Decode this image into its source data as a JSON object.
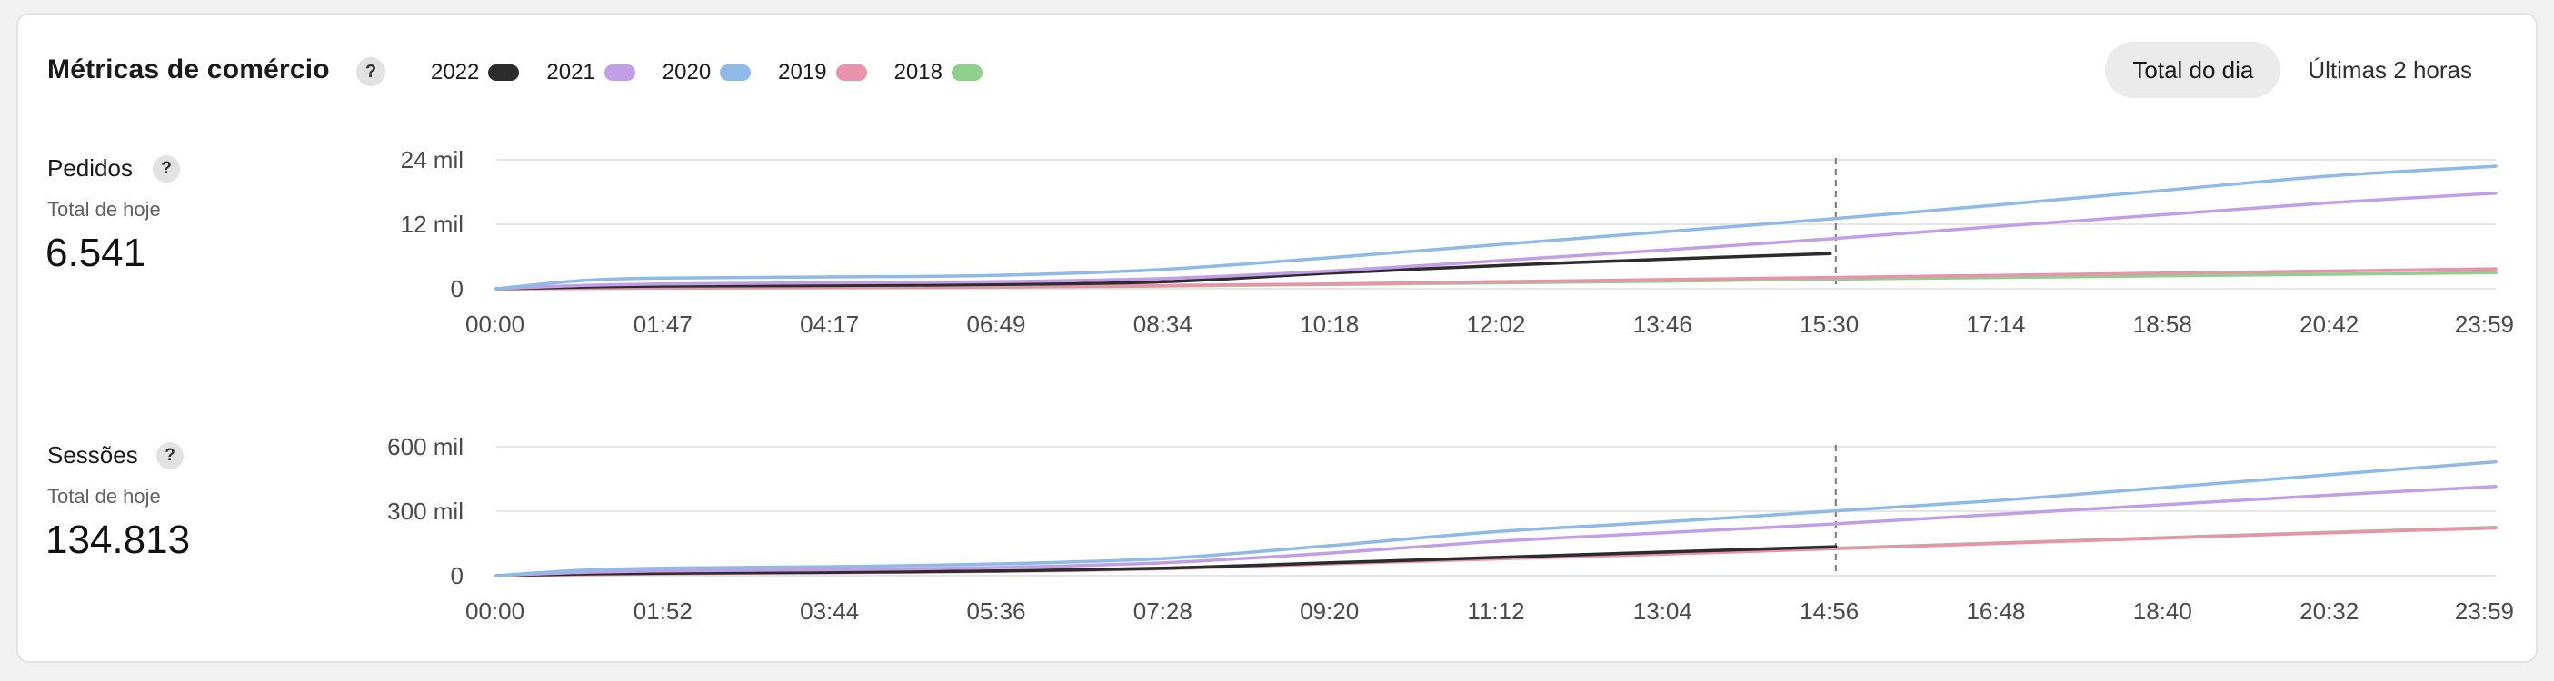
{
  "header": {
    "title": "Métricas de comércio",
    "help": "?",
    "toggle": {
      "options": [
        "Total do dia",
        "Últimas 2 horas"
      ],
      "active": "Total do dia"
    }
  },
  "legend": [
    {
      "label": "2022",
      "color": "#2c2c2c"
    },
    {
      "label": "2021",
      "color": "#c19fe5"
    },
    {
      "label": "2020",
      "color": "#8fb9e6"
    },
    {
      "label": "2019",
      "color": "#e893aa"
    },
    {
      "label": "2018",
      "color": "#8fd18c"
    }
  ],
  "panels": {
    "orders": {
      "title": "Pedidos",
      "help": "?",
      "subtitle": "Total de hoje",
      "value": "6.541"
    },
    "sessions": {
      "title": "Sessões",
      "help": "?",
      "subtitle": "Total de hoje",
      "value": "134.813"
    }
  },
  "chart_data": [
    {
      "type": "line",
      "title": "Pedidos",
      "x_ticks": [
        "00:00",
        "01:47",
        "04:17",
        "06:49",
        "08:34",
        "10:18",
        "12:02",
        "13:46",
        "15:30",
        "17:14",
        "18:58",
        "20:42",
        "23:59"
      ],
      "y_ticks": [
        {
          "value": 0,
          "label": "0"
        },
        {
          "value": 12000,
          "label": "12 mil"
        },
        {
          "value": 24000,
          "label": "24 mil"
        }
      ],
      "ylim": [
        0,
        24000
      ],
      "xlim": [
        "00:00",
        "23:59"
      ],
      "current_time": "16:04",
      "grid": true,
      "legend_position": "top",
      "series": [
        {
          "name": "2020",
          "color": "#8fb9e6",
          "x": [
            "00:00",
            "01:00",
            "02:00",
            "04:00",
            "06:00",
            "08:00",
            "10:00",
            "12:00",
            "14:00",
            "16:00",
            "18:00",
            "20:00",
            "22:00",
            "23:59"
          ],
          "values": [
            0,
            1500,
            2000,
            2200,
            2500,
            3600,
            5800,
            8200,
            10600,
            13000,
            15600,
            18300,
            21000,
            22800
          ]
        },
        {
          "name": "2021",
          "color": "#c19fe5",
          "x": [
            "00:00",
            "01:00",
            "02:00",
            "04:00",
            "06:00",
            "08:00",
            "10:00",
            "12:00",
            "14:00",
            "16:00",
            "18:00",
            "20:00",
            "22:00",
            "23:59"
          ],
          "values": [
            0,
            600,
            900,
            1100,
            1300,
            1900,
            3300,
            5200,
            7200,
            9300,
            11600,
            13800,
            16000,
            17800
          ]
        },
        {
          "name": "2022",
          "color": "#2c2c2c",
          "x": [
            "00:00",
            "01:00",
            "02:00",
            "04:00",
            "06:00",
            "08:00",
            "10:00",
            "12:00",
            "14:00",
            "16:00"
          ],
          "values": [
            0,
            300,
            500,
            600,
            800,
            1300,
            2900,
            4300,
            5500,
            6541
          ]
        },
        {
          "name": "2019",
          "color": "#e893aa",
          "x": [
            "00:00",
            "02:00",
            "04:00",
            "06:00",
            "08:00",
            "10:00",
            "12:00",
            "14:00",
            "16:00",
            "18:00",
            "20:00",
            "22:00",
            "23:59"
          ],
          "values": [
            0,
            150,
            250,
            350,
            600,
            900,
            1300,
            1700,
            2100,
            2500,
            2900,
            3300,
            3700
          ]
        },
        {
          "name": "2018",
          "color": "#8fd18c",
          "x": [
            "00:00",
            "02:00",
            "04:00",
            "06:00",
            "08:00",
            "10:00",
            "12:00",
            "14:00",
            "16:00",
            "18:00",
            "20:00",
            "22:00",
            "23:59"
          ],
          "values": [
            0,
            120,
            200,
            300,
            500,
            800,
            1100,
            1400,
            1800,
            2100,
            2400,
            2700,
            3000
          ]
        }
      ]
    },
    {
      "type": "line",
      "title": "Sessões",
      "x_ticks": [
        "00:00",
        "01:52",
        "03:44",
        "05:36",
        "07:28",
        "09:20",
        "11:12",
        "13:04",
        "14:56",
        "16:48",
        "18:40",
        "20:32",
        "23:59"
      ],
      "y_ticks": [
        {
          "value": 0,
          "label": "0"
        },
        {
          "value": 300000,
          "label": "300 mil"
        },
        {
          "value": 600000,
          "label": "600 mil"
        }
      ],
      "ylim": [
        0,
        600000
      ],
      "xlim": [
        "00:00",
        "23:59"
      ],
      "current_time": "16:04",
      "grid": true,
      "legend_position": "top",
      "series": [
        {
          "name": "2020",
          "color": "#8fb9e6",
          "x": [
            "00:00",
            "01:00",
            "02:00",
            "04:00",
            "06:00",
            "08:00",
            "10:00",
            "12:00",
            "14:00",
            "16:00",
            "18:00",
            "20:00",
            "22:00",
            "23:59"
          ],
          "values": [
            0,
            25000,
            35000,
            42000,
            55000,
            80000,
            140000,
            205000,
            250000,
            300000,
            350000,
            410000,
            470000,
            530000
          ]
        },
        {
          "name": "2021",
          "color": "#c19fe5",
          "x": [
            "00:00",
            "01:00",
            "02:00",
            "04:00",
            "06:00",
            "08:00",
            "10:00",
            "12:00",
            "14:00",
            "16:00",
            "18:00",
            "20:00",
            "22:00",
            "23:59"
          ],
          "values": [
            0,
            15000,
            22000,
            28000,
            38000,
            60000,
            105000,
            160000,
            200000,
            240000,
            285000,
            330000,
            375000,
            415000
          ]
        },
        {
          "name": "2022",
          "color": "#2c2c2c",
          "x": [
            "00:00",
            "01:00",
            "02:00",
            "04:00",
            "06:00",
            "08:00",
            "10:00",
            "12:00",
            "14:00",
            "16:04"
          ],
          "values": [
            0,
            8000,
            12000,
            16000,
            22000,
            35000,
            60000,
            85000,
            110000,
            134813
          ]
        },
        {
          "name": "2019",
          "color": "#e893aa",
          "x": [
            "00:00",
            "02:00",
            "04:00",
            "06:00",
            "08:00",
            "10:00",
            "12:00",
            "14:00",
            "16:00",
            "18:00",
            "20:00",
            "22:00",
            "23:59"
          ],
          "values": [
            0,
            9000,
            14000,
            20000,
            32000,
            55000,
            78000,
            100000,
            125000,
            150000,
            175000,
            200000,
            222000
          ]
        },
        {
          "name": "2018",
          "color": "#8fd18c",
          "x": [
            "00:00",
            "02:00",
            "04:00",
            "06:00",
            "08:00",
            "10:00",
            "12:00",
            "14:00",
            "16:00",
            "18:00",
            "20:00",
            "22:00",
            "23:59"
          ],
          "values": [
            0,
            10000,
            15000,
            21000,
            33000,
            57000,
            80000,
            102000,
            127000,
            152000,
            177000,
            202000,
            225000
          ]
        }
      ]
    }
  ]
}
